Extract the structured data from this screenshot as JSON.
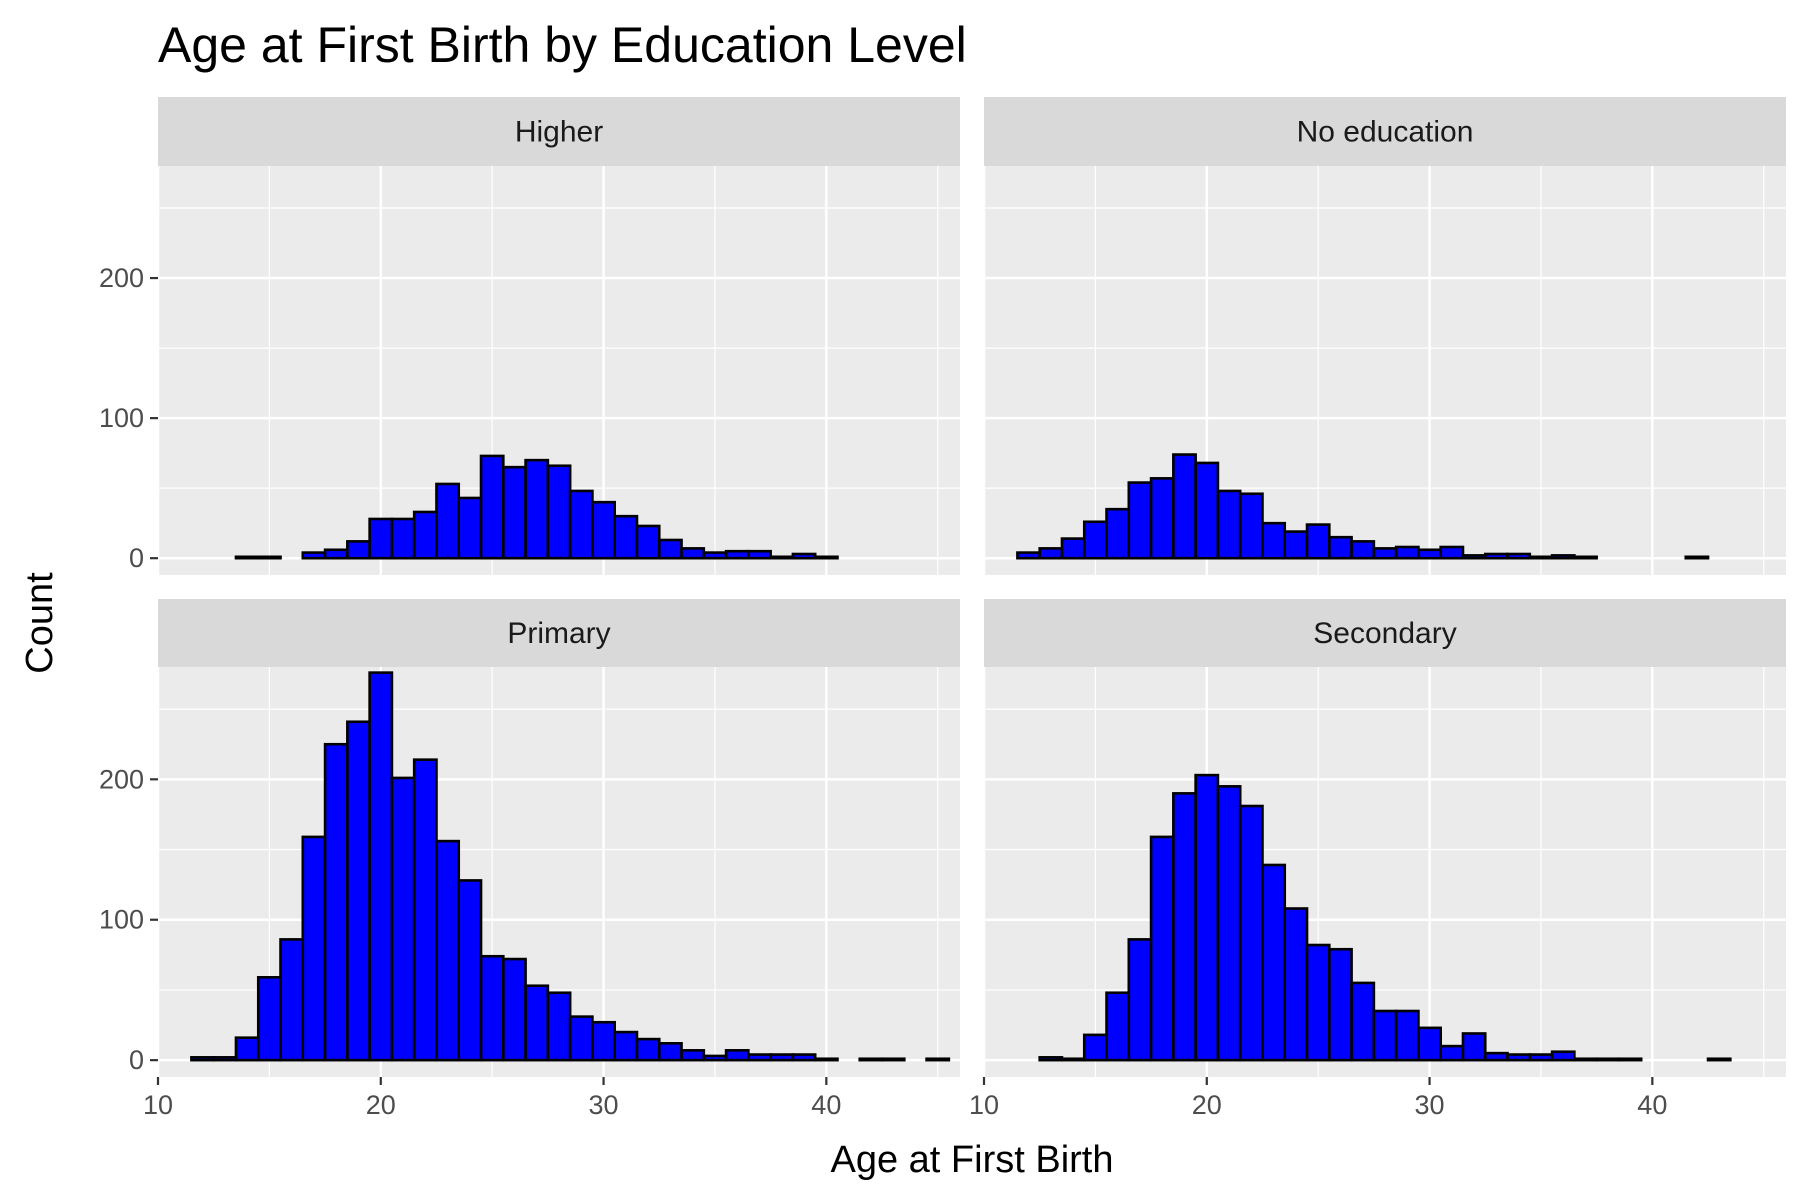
{
  "chart_data": {
    "type": "bar",
    "subtype": "faceted-histogram",
    "title": "Age at First Birth by Education Level",
    "xlabel": "Age at First Birth",
    "ylabel": "Count",
    "xlim": [
      10,
      46
    ],
    "ylim": [
      0,
      280
    ],
    "x_ticks": [
      "10",
      "20",
      "30",
      "40"
    ],
    "y_ticks": [
      "0",
      "100",
      "200"
    ],
    "bin_start": 11.5,
    "bin_width": 1,
    "grid": true,
    "legend": "none",
    "bar_fill": "#0000ff",
    "bar_outline": "#000000",
    "panel_background": "#ebebeb",
    "strip_background": "#d9d9d9",
    "facets": [
      {
        "label": "Higher",
        "counts": [
          0,
          0,
          1,
          1,
          0,
          4,
          6,
          12,
          28,
          28,
          33,
          53,
          43,
          73,
          65,
          70,
          66,
          48,
          40,
          30,
          23,
          13,
          7,
          4,
          5,
          5,
          1,
          3,
          1,
          0,
          0,
          0,
          0,
          0
        ]
      },
      {
        "label": "No education",
        "counts": [
          4,
          7,
          14,
          26,
          35,
          54,
          57,
          74,
          68,
          48,
          46,
          25,
          19,
          24,
          15,
          12,
          7,
          8,
          6,
          8,
          2,
          3,
          3,
          1,
          2,
          1,
          0,
          0,
          0,
          0,
          1,
          0,
          0
        ]
      },
      {
        "label": "Primary",
        "counts": [
          2,
          2,
          16,
          59,
          86,
          159,
          225,
          241,
          276,
          201,
          214,
          156,
          128,
          74,
          72,
          53,
          48,
          31,
          27,
          20,
          15,
          12,
          7,
          3,
          7,
          4,
          4,
          4,
          1,
          0,
          1,
          1,
          0,
          1
        ]
      },
      {
        "label": "Secondary",
        "counts": [
          0,
          2,
          1,
          18,
          48,
          86,
          159,
          190,
          203,
          195,
          181,
          139,
          108,
          82,
          79,
          55,
          35,
          35,
          23,
          10,
          19,
          5,
          4,
          4,
          6,
          1,
          1,
          1,
          0,
          0,
          0,
          1,
          0
        ]
      }
    ]
  }
}
